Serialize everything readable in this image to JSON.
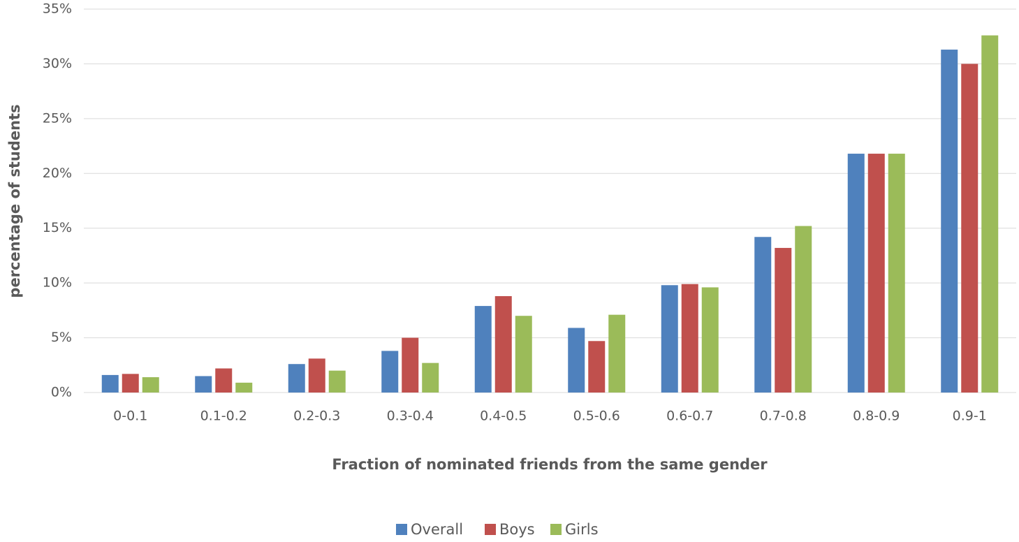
{
  "chart_data": {
    "type": "bar",
    "x_label": "Fraction of nominated friends from the same gender",
    "y_label": "percentage of students",
    "categories": [
      "0-0.1",
      "0.1-0.2",
      "0.2-0.3",
      "0.3-0.4",
      "0.4-0.5",
      "0.5-0.6",
      "0.6-0.7",
      "0.7-0.8",
      "0.8-0.9",
      "0.9-1"
    ],
    "series": [
      {
        "name": "Overall",
        "color": "#4f81bd",
        "values": [
          1.6,
          1.5,
          2.6,
          3.8,
          7.9,
          5.9,
          9.8,
          14.2,
          21.8,
          31.3
        ]
      },
      {
        "name": "Boys",
        "color": "#c0504d",
        "values": [
          1.7,
          2.2,
          3.1,
          5.0,
          8.8,
          4.7,
          9.9,
          13.2,
          21.8,
          30.0
        ]
      },
      {
        "name": "Girls",
        "color": "#9bbb59",
        "values": [
          1.4,
          0.9,
          2.0,
          2.7,
          7.0,
          7.1,
          9.6,
          15.2,
          21.8,
          32.6
        ]
      }
    ],
    "ylim": [
      0,
      35
    ],
    "yticks": [
      {
        "value": 0,
        "label": "0%"
      },
      {
        "value": 5,
        "label": "5%"
      },
      {
        "value": 10,
        "label": "10%"
      },
      {
        "value": 15,
        "label": "15%"
      },
      {
        "value": 20,
        "label": "20%"
      },
      {
        "value": 25,
        "label": "25%"
      },
      {
        "value": 30,
        "label": "30%"
      },
      {
        "value": 35,
        "label": "35%"
      }
    ],
    "grid": true,
    "legend": "bottom"
  }
}
